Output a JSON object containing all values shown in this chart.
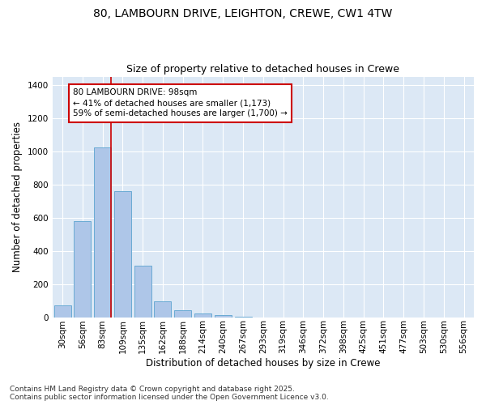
{
  "title_line1": "80, LAMBOURN DRIVE, LEIGHTON, CREWE, CW1 4TW",
  "title_line2": "Size of property relative to detached houses in Crewe",
  "xlabel": "Distribution of detached houses by size in Crewe",
  "ylabel": "Number of detached properties",
  "bar_color": "#aec6e8",
  "bar_edge_color": "#6aaad4",
  "categories": [
    "30sqm",
    "56sqm",
    "83sqm",
    "109sqm",
    "135sqm",
    "162sqm",
    "188sqm",
    "214sqm",
    "240sqm",
    "267sqm",
    "293sqm",
    "319sqm",
    "346sqm",
    "372sqm",
    "398sqm",
    "425sqm",
    "451sqm",
    "477sqm",
    "503sqm",
    "530sqm",
    "556sqm"
  ],
  "values": [
    70,
    580,
    1025,
    760,
    310,
    95,
    43,
    22,
    10,
    5,
    0,
    0,
    0,
    0,
    0,
    0,
    0,
    0,
    0,
    0,
    0
  ],
  "ylim": [
    0,
    1450
  ],
  "yticks": [
    0,
    200,
    400,
    600,
    800,
    1000,
    1200,
    1400
  ],
  "vline_x_index": 2,
  "vline_color": "#cc0000",
  "annotation_text": "80 LAMBOURN DRIVE: 98sqm\n← 41% of detached houses are smaller (1,173)\n59% of semi-detached houses are larger (1,700) →",
  "annotation_edge_color": "#cc0000",
  "bg_color": "#dce8f5",
  "footer_text": "Contains HM Land Registry data © Crown copyright and database right 2025.\nContains public sector information licensed under the Open Government Licence v3.0.",
  "title_fontsize": 10,
  "subtitle_fontsize": 9,
  "axis_label_fontsize": 8.5,
  "tick_fontsize": 7.5,
  "annotation_fontsize": 7.5,
  "footer_fontsize": 6.5
}
